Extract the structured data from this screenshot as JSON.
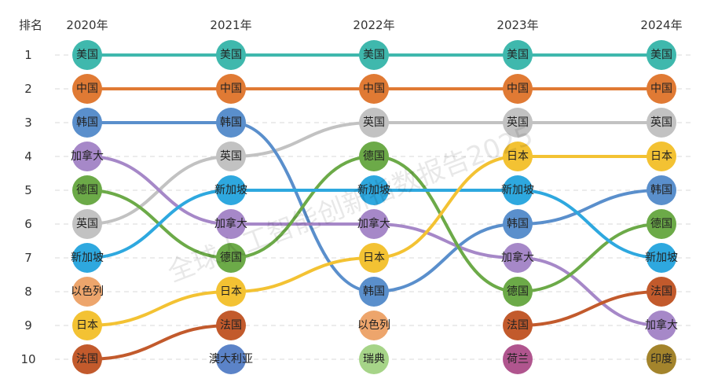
{
  "chart_data": {
    "type": "line",
    "corner_label": "排名",
    "ranks": [
      "1",
      "2",
      "3",
      "4",
      "5",
      "6",
      "7",
      "8",
      "9",
      "10"
    ],
    "years": [
      "2020年",
      "2021年",
      "2022年",
      "2023年",
      "2024年"
    ],
    "grid": "dashed-horizontal",
    "watermark": "全球人工智能创新指数报告2025",
    "colors": {
      "美国": "#3fb8ad",
      "中国": "#e07a34",
      "英国": "#c2c2c2",
      "韩国": "#5a8fcc",
      "加拿大": "#a688c8",
      "德国": "#6caa48",
      "新加坡": "#2ea8df",
      "日本": "#f3c233",
      "以色列": "#eda56c",
      "法国": "#c25a2c",
      "澳大利亚": "#5b83c8",
      "瑞典": "#a6d488",
      "荷兰": "#b0558e",
      "印度": "#a3842c"
    },
    "rankings": [
      [
        "美国",
        "中国",
        "韩国",
        "加拿大",
        "德国",
        "英国",
        "新加坡",
        "以色列",
        "日本",
        "法国"
      ],
      [
        "美国",
        "中国",
        "韩国",
        "英国",
        "新加坡",
        "加拿大",
        "德国",
        "日本",
        "法国",
        "澳大利亚"
      ],
      [
        "美国",
        "中国",
        "英国",
        "德国",
        "新加坡",
        "加拿大",
        "日本",
        "韩国",
        "以色列",
        "瑞典"
      ],
      [
        "美国",
        "中国",
        "英国",
        "日本",
        "新加坡",
        "韩国",
        "加拿大",
        "德国",
        "法国",
        "荷兰"
      ],
      [
        "美国",
        "中国",
        "英国",
        "日本",
        "韩国",
        "德国",
        "新加坡",
        "法国",
        "加拿大",
        "印度"
      ]
    ],
    "lines": [
      "美国",
      "中国",
      "英国",
      "韩国",
      "加拿大",
      "德国",
      "新加坡",
      "日本",
      "法国"
    ]
  }
}
